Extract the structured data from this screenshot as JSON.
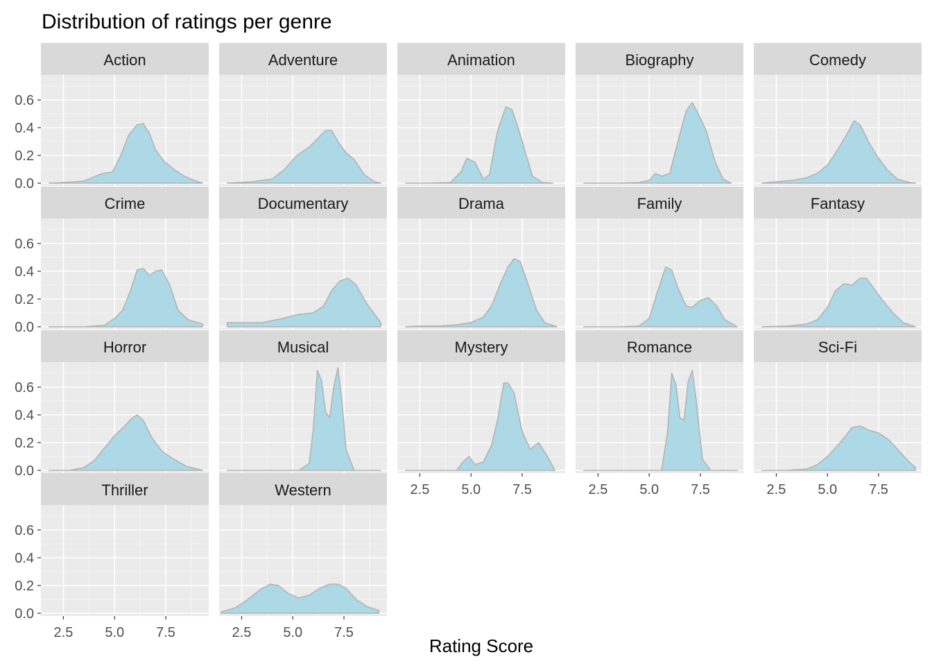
{
  "chart_data": {
    "type": "area",
    "title": "Distribution of ratings per genre",
    "xlabel": "Rating Score",
    "ylabel": "",
    "xlim": [
      1.4,
      9.6
    ],
    "ylim": [
      -0.02,
      0.78
    ],
    "x_ticks": [
      2.5,
      5.0,
      7.5
    ],
    "x_tick_labels": [
      "2.5",
      "5.0",
      "7.5"
    ],
    "y_ticks": [
      0.0,
      0.2,
      0.4,
      0.6
    ],
    "y_tick_labels": [
      "0.0",
      "0.2",
      "0.4",
      "0.6"
    ],
    "grid": true,
    "facets": [
      {
        "name": "Action",
        "x": [
          1.8,
          2.5,
          3.5,
          4.4,
          4.9,
          5.3,
          5.7,
          6.1,
          6.4,
          6.7,
          7.0,
          7.4,
          7.9,
          8.4,
          8.9,
          9.3
        ],
        "y": [
          0,
          0.005,
          0.015,
          0.07,
          0.08,
          0.2,
          0.35,
          0.42,
          0.43,
          0.36,
          0.24,
          0.16,
          0.1,
          0.05,
          0.02,
          0.0
        ]
      },
      {
        "name": "Adventure",
        "x": [
          1.8,
          3.0,
          4.0,
          4.6,
          5.2,
          5.8,
          6.2,
          6.6,
          6.9,
          7.2,
          7.6,
          8.0,
          8.5,
          9.0,
          9.3
        ],
        "y": [
          0,
          0.01,
          0.03,
          0.1,
          0.2,
          0.26,
          0.32,
          0.38,
          0.38,
          0.3,
          0.22,
          0.17,
          0.06,
          0.01,
          0.0
        ]
      },
      {
        "name": "Animation",
        "x": [
          1.8,
          3.0,
          4.0,
          4.5,
          4.8,
          5.2,
          5.6,
          5.9,
          6.3,
          6.7,
          7.0,
          7.3,
          7.6,
          8.0,
          8.5,
          9.0
        ],
        "y": [
          0,
          0,
          0.005,
          0.08,
          0.18,
          0.15,
          0.03,
          0.06,
          0.38,
          0.55,
          0.53,
          0.4,
          0.25,
          0.05,
          0.005,
          0.0
        ]
      },
      {
        "name": "Biography",
        "x": [
          1.8,
          3.5,
          4.5,
          5.0,
          5.3,
          5.6,
          6.0,
          6.4,
          6.8,
          7.1,
          7.4,
          7.8,
          8.2,
          8.6,
          9.0
        ],
        "y": [
          0,
          0,
          0.005,
          0.02,
          0.07,
          0.05,
          0.07,
          0.3,
          0.52,
          0.58,
          0.5,
          0.37,
          0.16,
          0.03,
          0.0
        ]
      },
      {
        "name": "Comedy",
        "x": [
          1.8,
          2.5,
          3.3,
          4.0,
          4.5,
          5.0,
          5.5,
          5.9,
          6.3,
          6.6,
          7.0,
          7.4,
          7.9,
          8.4,
          9.0,
          9.3
        ],
        "y": [
          0,
          0.01,
          0.02,
          0.04,
          0.07,
          0.13,
          0.24,
          0.34,
          0.45,
          0.42,
          0.3,
          0.2,
          0.1,
          0.03,
          0.005,
          0.0
        ]
      },
      {
        "name": "Crime",
        "x": [
          1.8,
          3.5,
          4.5,
          5.0,
          5.4,
          5.8,
          6.1,
          6.4,
          6.7,
          7.0,
          7.3,
          7.7,
          8.1,
          8.6,
          9.3
        ],
        "y": [
          0,
          0,
          0.01,
          0.06,
          0.12,
          0.27,
          0.41,
          0.42,
          0.37,
          0.4,
          0.41,
          0.3,
          0.12,
          0.05,
          0.02
        ]
      },
      {
        "name": "Documentary",
        "x": [
          1.8,
          2.5,
          3.5,
          4.5,
          5.3,
          6.0,
          6.5,
          6.9,
          7.3,
          7.7,
          8.1,
          8.6,
          9.3
        ],
        "y": [
          0.03,
          0.03,
          0.03,
          0.06,
          0.09,
          0.1,
          0.15,
          0.26,
          0.33,
          0.35,
          0.3,
          0.17,
          0.03
        ]
      },
      {
        "name": "Drama",
        "x": [
          1.8,
          2.5,
          3.5,
          4.3,
          5.0,
          5.6,
          6.0,
          6.4,
          6.8,
          7.1,
          7.4,
          7.8,
          8.2,
          8.6,
          9.2
        ],
        "y": [
          0,
          0.005,
          0.005,
          0.015,
          0.03,
          0.07,
          0.15,
          0.3,
          0.43,
          0.49,
          0.47,
          0.3,
          0.12,
          0.03,
          0.0
        ]
      },
      {
        "name": "Family",
        "x": [
          1.8,
          3.5,
          4.5,
          5.0,
          5.4,
          5.8,
          6.1,
          6.4,
          6.8,
          7.1,
          7.5,
          7.9,
          8.3,
          8.7,
          9.3
        ],
        "y": [
          0,
          0,
          0.005,
          0.06,
          0.25,
          0.43,
          0.41,
          0.28,
          0.15,
          0.14,
          0.19,
          0.21,
          0.15,
          0.05,
          0.0
        ]
      },
      {
        "name": "Fantasy",
        "x": [
          1.8,
          3.0,
          4.0,
          4.5,
          5.0,
          5.4,
          5.8,
          6.2,
          6.6,
          6.9,
          7.3,
          7.7,
          8.2,
          8.7,
          9.3
        ],
        "y": [
          0,
          0.005,
          0.02,
          0.05,
          0.14,
          0.26,
          0.31,
          0.3,
          0.35,
          0.35,
          0.27,
          0.19,
          0.1,
          0.03,
          0.0
        ]
      },
      {
        "name": "Horror",
        "x": [
          1.8,
          2.8,
          3.5,
          4.0,
          4.5,
          5.0,
          5.5,
          5.8,
          6.1,
          6.4,
          6.8,
          7.3,
          7.9,
          8.5,
          9.3
        ],
        "y": [
          0,
          0,
          0.02,
          0.07,
          0.16,
          0.25,
          0.32,
          0.37,
          0.4,
          0.36,
          0.24,
          0.14,
          0.08,
          0.03,
          0.0
        ]
      },
      {
        "name": "Musical",
        "x": [
          1.8,
          4.0,
          5.3,
          5.8,
          6.0,
          6.2,
          6.4,
          6.6,
          6.8,
          7.0,
          7.2,
          7.4,
          7.6,
          8.0,
          9.3
        ],
        "y": [
          0,
          0,
          0,
          0.05,
          0.3,
          0.72,
          0.65,
          0.42,
          0.38,
          0.6,
          0.74,
          0.5,
          0.15,
          0.0,
          0.0
        ]
      },
      {
        "name": "Mystery",
        "x": [
          1.8,
          3.5,
          4.3,
          4.6,
          4.9,
          5.2,
          5.6,
          6.0,
          6.3,
          6.6,
          6.8,
          7.1,
          7.5,
          7.9,
          8.3,
          8.7,
          9.1
        ],
        "y": [
          0,
          0,
          0.0,
          0.06,
          0.1,
          0.04,
          0.06,
          0.18,
          0.37,
          0.63,
          0.63,
          0.56,
          0.28,
          0.15,
          0.2,
          0.11,
          0.0
        ]
      },
      {
        "name": "Romance",
        "x": [
          1.8,
          4.5,
          5.6,
          5.9,
          6.1,
          6.3,
          6.5,
          6.7,
          6.9,
          7.1,
          7.3,
          7.6,
          8.0,
          9.3
        ],
        "y": [
          0,
          0,
          0,
          0.28,
          0.7,
          0.62,
          0.38,
          0.36,
          0.64,
          0.72,
          0.5,
          0.08,
          0.0,
          0.0
        ]
      },
      {
        "name": "Sci-Fi",
        "x": [
          1.8,
          3.0,
          4.0,
          4.5,
          5.0,
          5.5,
          5.9,
          6.2,
          6.6,
          7.0,
          7.5,
          8.0,
          8.5,
          9.0,
          9.3
        ],
        "y": [
          0,
          0,
          0.01,
          0.04,
          0.1,
          0.18,
          0.25,
          0.31,
          0.32,
          0.29,
          0.27,
          0.22,
          0.14,
          0.06,
          0.02
        ]
      },
      {
        "name": "Thriller",
        "x": [],
        "y": []
      },
      {
        "name": "Western",
        "x": [
          1.5,
          2.2,
          2.8,
          3.4,
          3.9,
          4.3,
          4.8,
          5.3,
          5.8,
          6.3,
          6.8,
          7.2,
          7.6,
          8.1,
          8.6,
          9.2
        ],
        "y": [
          0.01,
          0.04,
          0.1,
          0.17,
          0.21,
          0.2,
          0.14,
          0.11,
          0.13,
          0.18,
          0.21,
          0.21,
          0.18,
          0.1,
          0.05,
          0.02
        ]
      }
    ]
  },
  "colors": {
    "panel_bg": "#ebebeb",
    "strip_bg": "#d9d9d9",
    "grid_major": "#ffffff",
    "area_fill": "#add8e6",
    "area_stroke": "#b3b3b3",
    "tick_text": "#4d4d4d"
  }
}
